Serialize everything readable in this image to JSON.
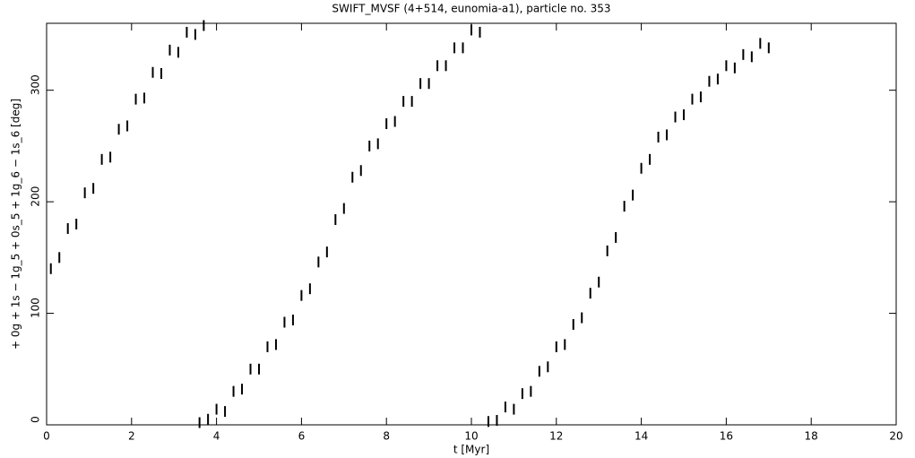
{
  "chart_data": {
    "type": "scatter",
    "title": "SWIFT_MVSF (4+514, eunomia-a1), particle no. 353",
    "x_label": "t [Myr]",
    "y_label": "+ 0g + 1s − 1g_5 + 0s_5 + 1g_6 − 1s_6 [deg]",
    "xlim": [
      0,
      20
    ],
    "ylim": [
      0,
      360
    ],
    "xticks": [
      0,
      2,
      4,
      6,
      8,
      10,
      12,
      14,
      16,
      18,
      20
    ],
    "yticks": [
      0,
      100,
      200,
      300
    ],
    "color": "#000000",
    "x": [
      0.1,
      0.3,
      0.5,
      0.7,
      0.9,
      1.1,
      1.3,
      1.5,
      1.7,
      1.9,
      2.1,
      2.3,
      2.5,
      2.7,
      2.9,
      3.1,
      3.3,
      3.5,
      3.7,
      3.6,
      3.8,
      4.0,
      4.2,
      4.4,
      4.6,
      4.8,
      5.0,
      5.2,
      5.4,
      5.6,
      5.8,
      6.0,
      6.2,
      6.4,
      6.6,
      6.8,
      7.0,
      7.2,
      7.4,
      7.6,
      7.8,
      8.0,
      8.2,
      8.4,
      8.6,
      8.8,
      9.0,
      9.2,
      9.4,
      9.6,
      9.8,
      10.0,
      10.2,
      10.4,
      10.6,
      10.8,
      11.0,
      11.2,
      11.4,
      11.6,
      11.8,
      12.0,
      12.2,
      12.4,
      12.6,
      12.8,
      13.0,
      13.2,
      13.4,
      13.6,
      13.8,
      14.0,
      14.2,
      14.4,
      14.6,
      14.8,
      15.0,
      15.2,
      15.4,
      15.6,
      15.8,
      16.0,
      16.2,
      16.4,
      16.6,
      16.8,
      17.0
    ],
    "values": [
      140,
      150,
      176,
      180,
      208,
      212,
      238,
      240,
      265,
      268,
      292,
      293,
      316,
      315,
      336,
      334,
      352,
      350,
      358,
      2,
      5,
      14,
      12,
      30,
      32,
      50,
      50,
      70,
      72,
      92,
      94,
      116,
      122,
      146,
      155,
      184,
      194,
      222,
      228,
      250,
      252,
      270,
      272,
      290,
      290,
      306,
      306,
      322,
      322,
      338,
      338,
      354,
      352,
      3,
      4,
      16,
      14,
      28,
      30,
      48,
      52,
      70,
      72,
      90,
      96,
      118,
      128,
      156,
      168,
      196,
      206,
      230,
      238,
      258,
      260,
      276,
      278,
      292,
      294,
      308,
      310,
      322,
      320,
      332,
      330,
      342,
      338
    ]
  }
}
